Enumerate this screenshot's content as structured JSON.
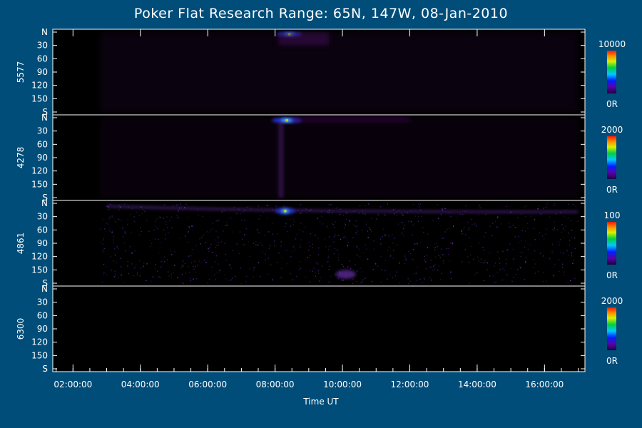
{
  "chart_data": {
    "type": "heatmap",
    "title": "Poker Flat Research Range: 65N, 147W, 08-Jan-2010",
    "xlabel": "Time UT",
    "x_ticks": [
      "02:00:00",
      "04:00:00",
      "06:00:00",
      "08:00:00",
      "10:00:00",
      "12:00:00",
      "14:00:00",
      "16:00:00"
    ],
    "x_tick_hours": [
      2,
      4,
      6,
      8,
      10,
      12,
      14,
      16
    ],
    "x_range_hours": [
      1.4,
      17.2
    ],
    "y_ticks": [
      "N",
      "30",
      "60",
      "90",
      "120",
      "150",
      "S"
    ],
    "y_tick_values": [
      0,
      30,
      60,
      90,
      120,
      150,
      180
    ],
    "y_range": [
      0,
      180
    ],
    "grid": false,
    "panels": [
      {
        "label": "5577",
        "colorbar": {
          "max_label": "10000",
          "min_label": "0R"
        },
        "features": [
          {
            "kind": "bright",
            "time": [
              8.05,
              8.8
            ],
            "angle": [
              0,
              10
            ],
            "level": 0.9
          },
          {
            "kind": "diffuse",
            "time": [
              2.8,
              17.0
            ],
            "angle": [
              0,
              180
            ],
            "level": 0.06
          },
          {
            "kind": "diffuse",
            "time": [
              8.1,
              9.6
            ],
            "angle": [
              0,
              30
            ],
            "level": 0.2
          }
        ]
      },
      {
        "label": "4278",
        "colorbar": {
          "max_label": "2000",
          "min_label": "0R"
        },
        "features": [
          {
            "kind": "bright",
            "time": [
              7.9,
              8.8
            ],
            "angle": [
              0,
              12
            ],
            "level": 0.95
          },
          {
            "kind": "streak",
            "time": [
              8.1,
              8.25
            ],
            "angle": [
              10,
              180
            ],
            "level": 0.4
          },
          {
            "kind": "diffuse",
            "time": [
              8.5,
              12.0
            ],
            "angle": [
              0,
              8
            ],
            "level": 0.3
          },
          {
            "kind": "diffuse",
            "time": [
              2.8,
              17.0
            ],
            "angle": [
              0,
              180
            ],
            "level": 0.05
          }
        ]
      },
      {
        "label": "4861",
        "colorbar": {
          "max_label": "100",
          "min_label": "0R"
        },
        "features": [
          {
            "kind": "noise",
            "time": [
              2.8,
              17.0
            ],
            "angle": [
              0,
              180
            ],
            "level": 0.3
          },
          {
            "kind": "arc",
            "time": [
              3.0,
              17.0
            ],
            "angle": [
              0,
              20
            ],
            "level": 0.5
          },
          {
            "kind": "bright",
            "time": [
              8.0,
              8.6
            ],
            "angle": [
              10,
              25
            ],
            "level": 0.7
          },
          {
            "kind": "patch",
            "time": [
              9.8,
              10.4
            ],
            "angle": [
              150,
              170
            ],
            "level": 0.6
          }
        ]
      },
      {
        "label": "6300",
        "colorbar": {
          "max_label": "2000",
          "min_label": "0R"
        },
        "features": []
      }
    ]
  }
}
